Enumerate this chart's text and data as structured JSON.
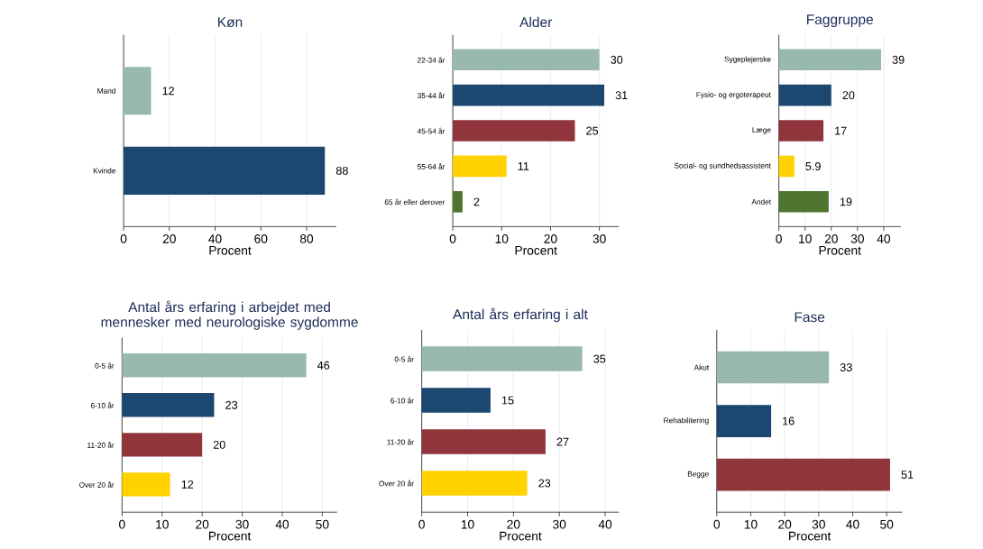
{
  "chart_data": [
    {
      "type": "bar",
      "orientation": "horizontal",
      "title": "Køn",
      "xlabel": "Procent",
      "categories": [
        "Mand",
        "Kvinde"
      ],
      "values": [
        12,
        88
      ],
      "colors": [
        "#98b8b0",
        "#1c4770"
      ],
      "xlim": [
        0,
        93
      ],
      "xticks": [
        0,
        20,
        40,
        60,
        80
      ],
      "grid": "x",
      "data_labels": true
    },
    {
      "type": "bar",
      "orientation": "horizontal",
      "title": "Alder",
      "xlabel": "Procent",
      "categories": [
        "22-34 år",
        "35-44 år",
        "45-54 år",
        "55-64 år",
        "65 år eller derover"
      ],
      "values": [
        30,
        31,
        25,
        11,
        2
      ],
      "colors": [
        "#98b8b0",
        "#1c4770",
        "#90353b",
        "#ffd200",
        "#4f7530"
      ],
      "xlim": [
        0,
        34
      ],
      "xticks": [
        0,
        10,
        20,
        30
      ],
      "grid": "x",
      "data_labels": true
    },
    {
      "type": "bar",
      "orientation": "horizontal",
      "title": "Faggruppe",
      "xlabel": "Procent",
      "categories": [
        "Sygeplejerske",
        "Fysio- og ergoterapeut",
        "Læge",
        "Social- og sundhedsassistent",
        "Andet"
      ],
      "values": [
        39,
        20,
        17,
        5.9,
        19
      ],
      "colors": [
        "#98b8b0",
        "#1c4770",
        "#90353b",
        "#ffd200",
        "#4f7530"
      ],
      "xlim": [
        0,
        46.5
      ],
      "xticks": [
        0,
        10,
        20,
        30,
        40
      ],
      "grid": "x",
      "data_labels": true
    },
    {
      "type": "bar",
      "orientation": "horizontal",
      "title": "Antal års erfaring i arbejdet med mennesker med neurologiske sygdomme",
      "xlabel": "Procent",
      "categories": [
        "0-5 år",
        "6-10 år",
        "11-20 år",
        "Over 20 år"
      ],
      "values": [
        46,
        23,
        20,
        12
      ],
      "colors": [
        "#98b8b0",
        "#1c4770",
        "#90353b",
        "#ffd200"
      ],
      "xlim": [
        0,
        53.7
      ],
      "xticks": [
        0,
        10,
        20,
        30,
        40,
        50
      ],
      "grid": "x",
      "data_labels": true
    },
    {
      "type": "bar",
      "orientation": "horizontal",
      "title": "Antal års erfaring i alt",
      "xlabel": "Procent",
      "categories": [
        "0-5 år",
        "6-10 år",
        "11-20 år",
        "Over 20 år"
      ],
      "values": [
        35,
        15,
        27,
        23
      ],
      "colors": [
        "#98b8b0",
        "#1c4770",
        "#90353b",
        "#ffd200"
      ],
      "xlim": [
        0,
        43
      ],
      "xticks": [
        0,
        10,
        20,
        30,
        40
      ],
      "grid": "x",
      "data_labels": true
    },
    {
      "type": "bar",
      "orientation": "horizontal",
      "title": "Fase",
      "xlabel": "Procent",
      "categories": [
        "Akut",
        "Rehabilitering",
        "Begge"
      ],
      "values": [
        33,
        16,
        51
      ],
      "colors": [
        "#98b8b0",
        "#1c4770",
        "#90353b"
      ],
      "xlim": [
        0,
        54.6
      ],
      "xticks": [
        0,
        10,
        20,
        30,
        40,
        50
      ],
      "grid": "x",
      "data_labels": true
    }
  ]
}
